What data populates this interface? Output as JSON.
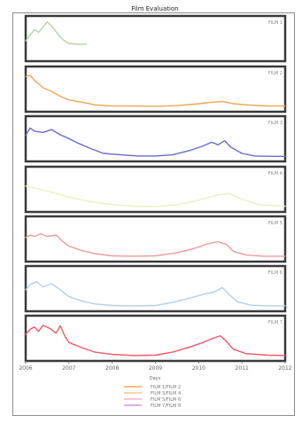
{
  "chart_data": {
    "type": "line",
    "title": "Film Evaluation",
    "xlabel": "Days",
    "xlim": [
      2006,
      2012
    ],
    "x_ticks": [
      "2006",
      "2007",
      "2008",
      "2009",
      "2010",
      "2011",
      "2012"
    ],
    "grid": false,
    "legend_position": "bottom-center",
    "panels": [
      {
        "tag": "FILM 1",
        "color": "#b9cfa9",
        "ylim": [
          0,
          100
        ],
        "points": [
          [
            2006.0,
            45
          ],
          [
            2006.1,
            60
          ],
          [
            2006.2,
            75
          ],
          [
            2006.3,
            68
          ],
          [
            2006.4,
            82
          ],
          [
            2006.5,
            96
          ],
          [
            2006.6,
            85
          ],
          [
            2006.7,
            70
          ],
          [
            2006.8,
            55
          ],
          [
            2006.9,
            45
          ],
          [
            2007.0,
            38
          ],
          [
            2007.2,
            36
          ],
          [
            2007.4,
            36
          ]
        ]
      },
      {
        "tag": "FILM 2",
        "color": "#f0a55a",
        "ylim": [
          0,
          100
        ],
        "points": [
          [
            2006.0,
            85
          ],
          [
            2006.1,
            88
          ],
          [
            2006.25,
            70
          ],
          [
            2006.4,
            55
          ],
          [
            2006.6,
            45
          ],
          [
            2006.8,
            32
          ],
          [
            2007.0,
            22
          ],
          [
            2007.3,
            16
          ],
          [
            2007.6,
            9
          ],
          [
            2008.0,
            6
          ],
          [
            2008.5,
            6
          ],
          [
            2009.0,
            5
          ],
          [
            2009.5,
            7
          ],
          [
            2010.0,
            12
          ],
          [
            2010.3,
            16
          ],
          [
            2010.55,
            18
          ],
          [
            2010.8,
            12
          ],
          [
            2011.2,
            8
          ],
          [
            2011.6,
            6
          ],
          [
            2012.0,
            6
          ]
        ]
      },
      {
        "tag": "FILM 3",
        "color": "#6a6ad0",
        "ylim": [
          0,
          100
        ],
        "points": [
          [
            2006.0,
            60
          ],
          [
            2006.1,
            80
          ],
          [
            2006.2,
            72
          ],
          [
            2006.4,
            68
          ],
          [
            2006.6,
            76
          ],
          [
            2006.8,
            62
          ],
          [
            2007.0,
            52
          ],
          [
            2007.2,
            40
          ],
          [
            2007.5,
            25
          ],
          [
            2007.8,
            12
          ],
          [
            2008.2,
            8
          ],
          [
            2008.6,
            5
          ],
          [
            2009.0,
            5
          ],
          [
            2009.4,
            8
          ],
          [
            2009.8,
            20
          ],
          [
            2010.1,
            32
          ],
          [
            2010.3,
            42
          ],
          [
            2010.45,
            35
          ],
          [
            2010.6,
            46
          ],
          [
            2010.75,
            28
          ],
          [
            2011.0,
            12
          ],
          [
            2011.3,
            5
          ],
          [
            2011.7,
            4
          ],
          [
            2012.0,
            4
          ]
        ]
      },
      {
        "tag": "FILM 4",
        "color": "#eaf0c0",
        "ylim": [
          0,
          100
        ],
        "points": [
          [
            2006.0,
            60
          ],
          [
            2006.2,
            55
          ],
          [
            2006.4,
            50
          ],
          [
            2006.7,
            40
          ],
          [
            2007.0,
            30
          ],
          [
            2007.5,
            18
          ],
          [
            2008.0,
            10
          ],
          [
            2008.5,
            6
          ],
          [
            2009.0,
            5
          ],
          [
            2009.5,
            10
          ],
          [
            2010.0,
            22
          ],
          [
            2010.4,
            35
          ],
          [
            2010.7,
            40
          ],
          [
            2011.0,
            25
          ],
          [
            2011.4,
            10
          ],
          [
            2012.0,
            6
          ]
        ]
      },
      {
        "tag": "FILM 5",
        "color": "#ee9aa0",
        "ylim": [
          0,
          100
        ],
        "points": [
          [
            2006.0,
            55
          ],
          [
            2006.1,
            62
          ],
          [
            2006.2,
            58
          ],
          [
            2006.35,
            65
          ],
          [
            2006.5,
            58
          ],
          [
            2006.7,
            62
          ],
          [
            2006.85,
            45
          ],
          [
            2007.0,
            32
          ],
          [
            2007.3,
            20
          ],
          [
            2007.6,
            12
          ],
          [
            2008.0,
            6
          ],
          [
            2008.5,
            5
          ],
          [
            2009.0,
            6
          ],
          [
            2009.5,
            14
          ],
          [
            2009.9,
            26
          ],
          [
            2010.2,
            38
          ],
          [
            2010.45,
            44
          ],
          [
            2010.65,
            36
          ],
          [
            2010.8,
            18
          ],
          [
            2011.1,
            8
          ],
          [
            2011.5,
            5
          ],
          [
            2012.0,
            5
          ]
        ]
      },
      {
        "tag": "FILM 6",
        "color": "#b5cfe5",
        "ylim": [
          0,
          100
        ],
        "points": [
          [
            2006.0,
            48
          ],
          [
            2006.1,
            62
          ],
          [
            2006.25,
            70
          ],
          [
            2006.4,
            56
          ],
          [
            2006.6,
            64
          ],
          [
            2006.8,
            48
          ],
          [
            2007.0,
            30
          ],
          [
            2007.3,
            18
          ],
          [
            2007.6,
            10
          ],
          [
            2008.0,
            6
          ],
          [
            2008.5,
            5
          ],
          [
            2009.0,
            6
          ],
          [
            2009.4,
            14
          ],
          [
            2009.8,
            26
          ],
          [
            2010.1,
            36
          ],
          [
            2010.35,
            42
          ],
          [
            2010.55,
            54
          ],
          [
            2010.7,
            36
          ],
          [
            2010.9,
            16
          ],
          [
            2011.2,
            7
          ],
          [
            2011.6,
            5
          ],
          [
            2012.0,
            5
          ]
        ]
      },
      {
        "tag": "FILM 7",
        "color": "#f05868",
        "ylim": [
          0,
          100
        ],
        "points": [
          [
            2006.0,
            62
          ],
          [
            2006.1,
            75
          ],
          [
            2006.2,
            82
          ],
          [
            2006.3,
            70
          ],
          [
            2006.4,
            86
          ],
          [
            2006.55,
            78
          ],
          [
            2006.7,
            65
          ],
          [
            2006.8,
            85
          ],
          [
            2006.9,
            58
          ],
          [
            2007.0,
            40
          ],
          [
            2007.3,
            26
          ],
          [
            2007.6,
            14
          ],
          [
            2008.0,
            8
          ],
          [
            2008.5,
            5
          ],
          [
            2009.0,
            6
          ],
          [
            2009.4,
            14
          ],
          [
            2009.8,
            28
          ],
          [
            2010.1,
            40
          ],
          [
            2010.3,
            50
          ],
          [
            2010.5,
            58
          ],
          [
            2010.65,
            42
          ],
          [
            2010.8,
            22
          ],
          [
            2011.1,
            10
          ],
          [
            2011.6,
            6
          ],
          [
            2012.0,
            5
          ]
        ]
      }
    ],
    "legend": [
      {
        "label": "FILM 1/FILM 2",
        "color": "#f0a55a"
      },
      {
        "label": "FILM 3/FILM 4",
        "color": "#f5c98a"
      },
      {
        "label": "FILM 5/FILM 6",
        "color": "#f3b6c8"
      },
      {
        "label": "FILM 7/FILM 8",
        "color": "#c99ad8"
      }
    ]
  }
}
